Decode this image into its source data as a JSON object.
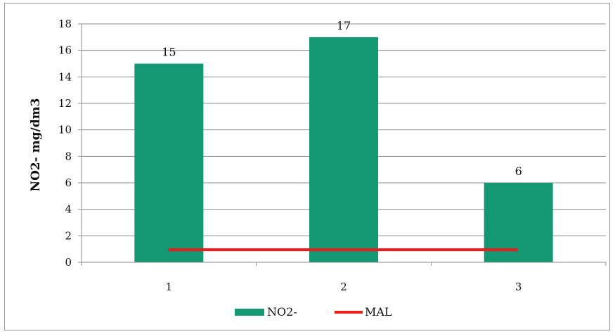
{
  "chart_data": {
    "type": "bar",
    "categories": [
      "1",
      "2",
      "3"
    ],
    "series": [
      {
        "name": "NO2-",
        "kind": "bar",
        "values": [
          15,
          17,
          6
        ],
        "color": "#139873"
      },
      {
        "name": "MAL",
        "kind": "line",
        "values": [
          1,
          1,
          1
        ],
        "color": "#ee1c1c"
      }
    ],
    "data_labels": [
      "15",
      "17",
      "6"
    ],
    "title": "",
    "xlabel": "",
    "ylabel": "NO2- mg/dm3",
    "ylim": [
      0,
      18
    ],
    "yticks": [
      "0",
      "2",
      "4",
      "6",
      "8",
      "10",
      "12",
      "14",
      "16",
      "18"
    ],
    "grid": true,
    "legend": "bottom"
  }
}
